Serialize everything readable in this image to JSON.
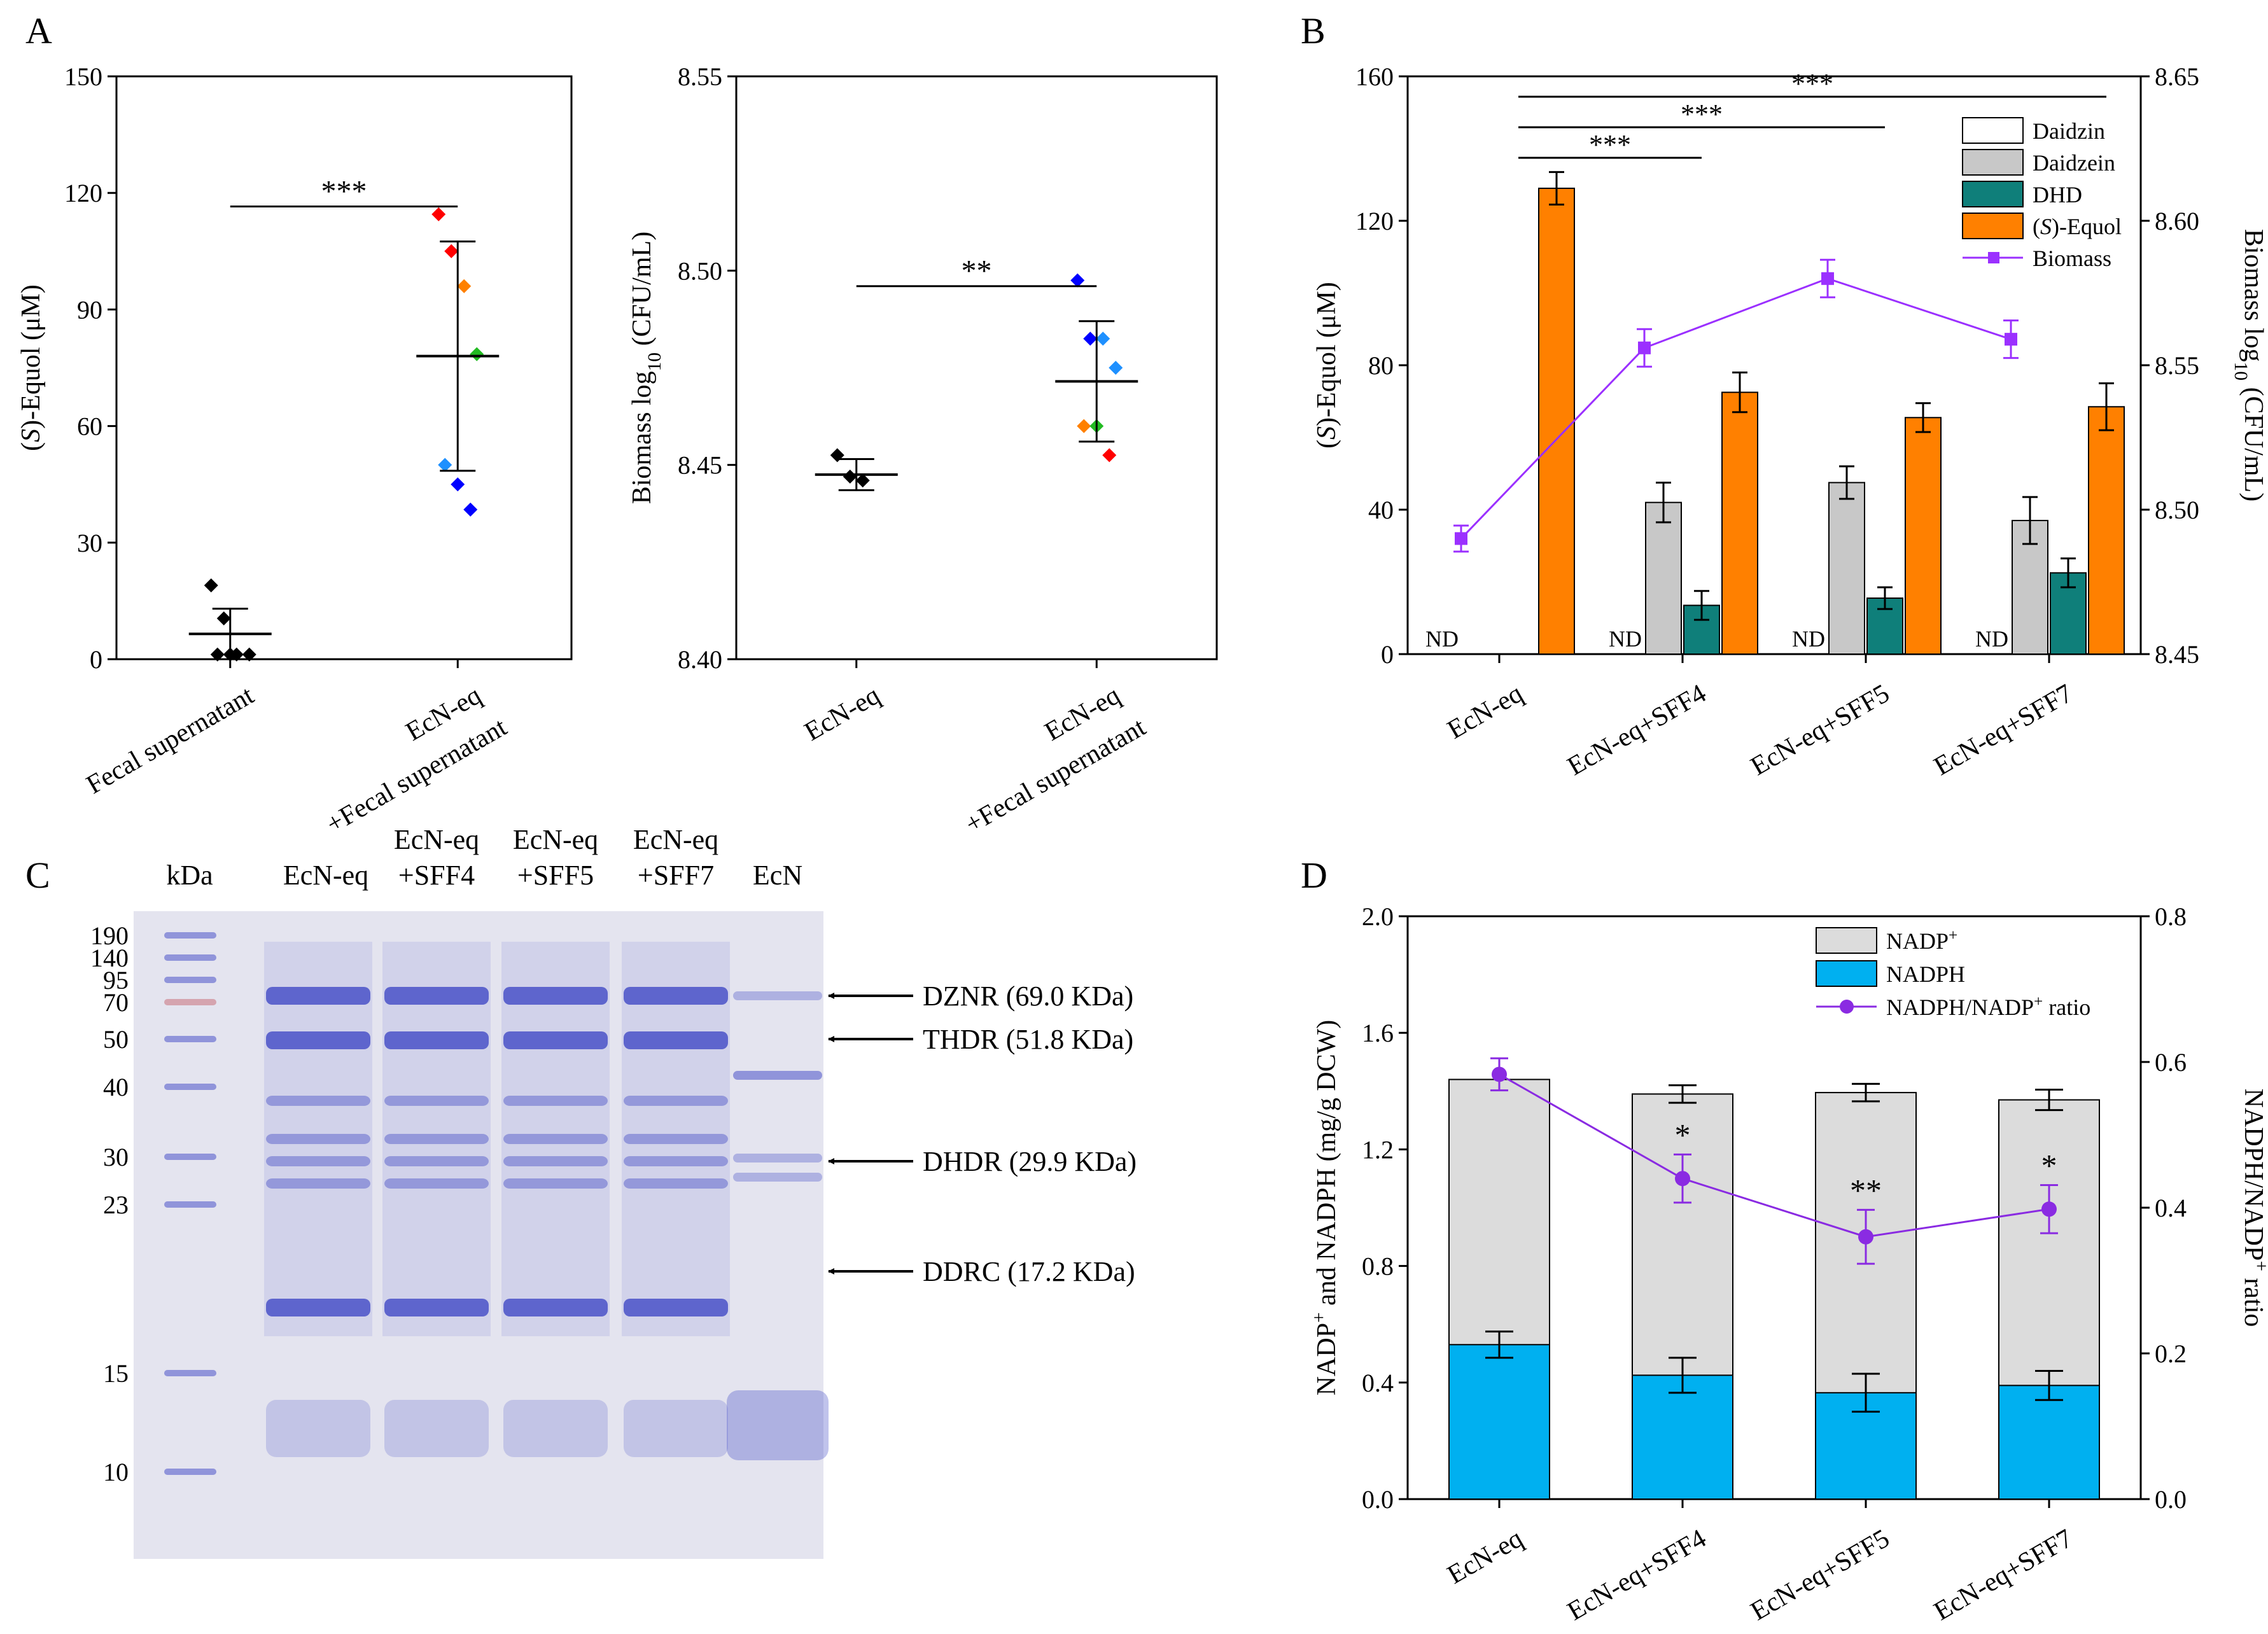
{
  "panel_labels": {
    "a": "A",
    "b": "B",
    "c": "C",
    "d": "D"
  },
  "colors": {
    "daidzein": "#c8c8c8",
    "dhd": "#0f7f7a",
    "equol": "#ff8000",
    "biomass": "#9b30ff",
    "nadp": "#dcdcdc",
    "nadph": "#00b0f0",
    "ratio": "#8a2be2",
    "gel_bg": "#e4e4ef",
    "band": "#4a52c8"
  },
  "chart_data": [
    {
      "id": "A1",
      "type": "scatter",
      "ylabel": "(S)-Equol (μM)",
      "ylim": [
        0,
        150
      ],
      "yticks": [
        "0",
        "30",
        "60",
        "90",
        "120",
        "150"
      ],
      "categories": [
        "Fecal supernatant",
        "EcN-eq +Fecal supernatant"
      ],
      "xticklabels": [
        [
          "Fecal supernatant"
        ],
        [
          "EcN-eq",
          "+Fecal supernatant"
        ]
      ],
      "groups": [
        {
          "mean": 6.5,
          "sd": 6.5,
          "points": [
            {
              "y": 19,
              "color": "#000000"
            },
            {
              "y": 10.5,
              "color": "#000000"
            },
            {
              "y": 1.2,
              "color": "#000000"
            },
            {
              "y": 1.2,
              "color": "#000000"
            },
            {
              "y": 1.2,
              "color": "#000000"
            },
            {
              "y": 1.2,
              "color": "#000000"
            }
          ]
        },
        {
          "mean": 78,
          "sd": 29.5,
          "points": [
            {
              "y": 114.5,
              "color": "#ff0000"
            },
            {
              "y": 105,
              "color": "#ff0000"
            },
            {
              "y": 96,
              "color": "#ff8000"
            },
            {
              "y": 78.5,
              "color": "#22bb22"
            },
            {
              "y": 50,
              "color": "#1e90ff"
            },
            {
              "y": 45,
              "color": "#0000ff"
            },
            {
              "y": 38.5,
              "color": "#0000ff"
            }
          ]
        }
      ],
      "significance": "***"
    },
    {
      "id": "A2",
      "type": "scatter",
      "ylabel": "Biomass log10 (CFU/mL)",
      "ylim": [
        8.4,
        8.55
      ],
      "yticks": [
        "8.40",
        "8.45",
        "8.50",
        "8.55"
      ],
      "categories": [
        "EcN-eq",
        "EcN-eq +Fecal supernatant"
      ],
      "xticklabels": [
        [
          "EcN-eq"
        ],
        [
          "EcN-eq",
          "+Fecal supernatant"
        ]
      ],
      "groups": [
        {
          "mean": 8.4475,
          "sd": 0.004,
          "points": [
            {
              "y": 8.4525,
              "color": "#000000"
            },
            {
              "y": 8.447,
              "color": "#000000"
            },
            {
              "y": 8.446,
              "color": "#000000"
            }
          ]
        },
        {
          "mean": 8.4715,
          "sd": 0.0155,
          "points": [
            {
              "y": 8.4975,
              "color": "#0000ff"
            },
            {
              "y": 8.4825,
              "color": "#0000ff"
            },
            {
              "y": 8.4825,
              "color": "#1e90ff"
            },
            {
              "y": 8.475,
              "color": "#1e90ff"
            },
            {
              "y": 8.46,
              "color": "#ff8000"
            },
            {
              "y": 8.46,
              "color": "#22bb22"
            },
            {
              "y": 8.4525,
              "color": "#ff0000"
            }
          ]
        }
      ],
      "significance": "**"
    },
    {
      "id": "B",
      "type": "bar",
      "ylabel": "(S)-Equol (μM)",
      "y2label": "Biomass log10 (CFU/mL)",
      "ylim": [
        0,
        160
      ],
      "y2lim": [
        8.45,
        8.65
      ],
      "yticks": [
        "0",
        "40",
        "80",
        "120",
        "160"
      ],
      "y2ticks": [
        "8.45",
        "8.50",
        "8.55",
        "8.60",
        "8.65"
      ],
      "categories": [
        "EcN-eq",
        "EcN-eq+SFF4",
        "EcN-eq+SFF5",
        "EcN-eq+SFF7"
      ],
      "series": [
        {
          "name": "Daidzin",
          "values": [
            0,
            0,
            0,
            0
          ],
          "errors": [
            0,
            0,
            0,
            0
          ]
        },
        {
          "name": "Daidzein",
          "values": [
            0,
            42,
            47.5,
            37
          ],
          "errors": [
            0,
            5.5,
            4.5,
            6.5
          ]
        },
        {
          "name": "DHD",
          "values": [
            0,
            13.5,
            15.5,
            22.5
          ],
          "errors": [
            0,
            4,
            3,
            4
          ]
        },
        {
          "name": "(S)-Equol",
          "values": [
            129,
            72.5,
            65.5,
            68.5
          ],
          "errors": [
            4.5,
            5.5,
            4,
            6.5
          ]
        }
      ],
      "line": {
        "name": "Biomass",
        "values": [
          8.49,
          8.556,
          8.58,
          8.559
        ],
        "errors": [
          0.0045,
          0.0065,
          0.0065,
          0.0065
        ]
      },
      "nd_label": "ND",
      "significance": [
        {
          "from": 0,
          "to": 1,
          "label": "***"
        },
        {
          "from": 0,
          "to": 2,
          "label": "***"
        },
        {
          "from": 0,
          "to": 3,
          "label": "***"
        }
      ],
      "legend": [
        "Daidzin",
        "Daidzein",
        "DHD",
        "(S)-Equol",
        "Biomass"
      ]
    },
    {
      "id": "D",
      "type": "bar",
      "ylabel": "NADP+ and NADPH (mg/g DCW)",
      "y2label": "NADPH/NADP+ ratio",
      "ylim": [
        0,
        2.0
      ],
      "y2lim": [
        0,
        0.8
      ],
      "yticks": [
        "0.0",
        "0.4",
        "0.8",
        "1.2",
        "1.6",
        "2.0"
      ],
      "y2ticks": [
        "0.0",
        "0.2",
        "0.4",
        "0.6",
        "0.8"
      ],
      "categories": [
        "EcN-eq",
        "EcN-eq+SFF4",
        "EcN-eq+SFF5",
        "EcN-eq+SFF7"
      ],
      "series": [
        {
          "name": "NADP+",
          "values": [
            1.44,
            1.39,
            1.395,
            1.37
          ],
          "errors": [
            0,
            0.03,
            0.03,
            0.035
          ]
        },
        {
          "name": "NADPH",
          "values": [
            0.53,
            0.425,
            0.365,
            0.39
          ],
          "errors": [
            0.045,
            0.06,
            0.065,
            0.05
          ]
        }
      ],
      "line": {
        "name": "NADPH/NADP+ ratio",
        "values": [
          0.583,
          0.44,
          0.36,
          0.398
        ],
        "errors": [
          0.022,
          0.033,
          0.037,
          0.033
        ]
      },
      "significance": [
        "",
        "*",
        "**",
        "*"
      ],
      "legend": [
        "NADP+",
        "NADPH",
        "NADPH/NADP+ ratio"
      ]
    }
  ],
  "gel": {
    "header": [
      "kDa",
      "EcN-eq",
      "EcN-eq\n+SFF4",
      "EcN-eq\n+SFF5",
      "EcN-eq\n+SFF7",
      "EcN"
    ],
    "ladder": [
      "190",
      "140",
      "95",
      "70",
      "50",
      "40",
      "30",
      "23",
      "15",
      "10"
    ],
    "annotations": [
      "DZNR (69.0 KDa)",
      "THDR (51.8 KDa)",
      "DHDR (29.9 KDa)",
      "DDRC (17.2 KDa)"
    ]
  }
}
